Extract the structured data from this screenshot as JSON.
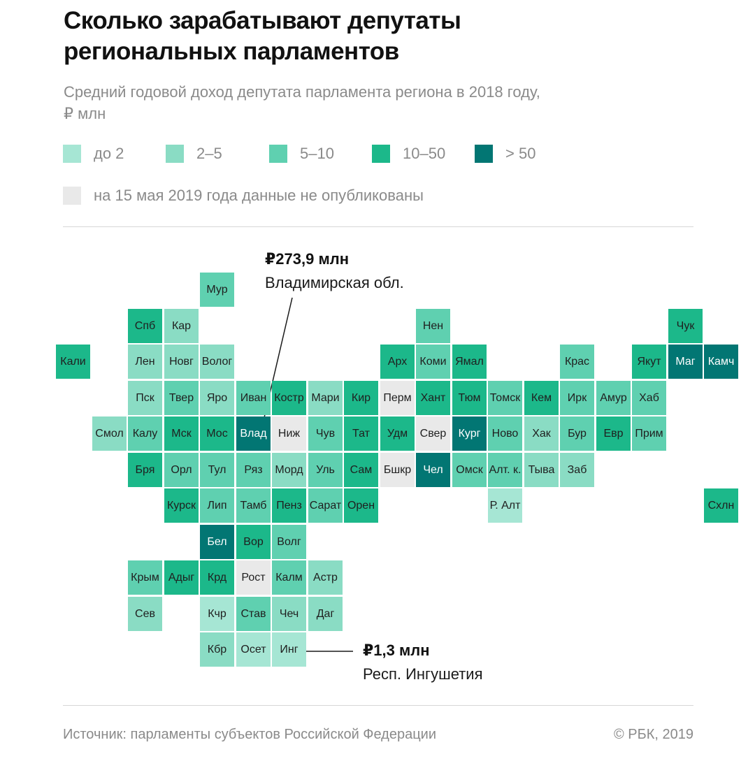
{
  "header": {
    "title_line1": "Сколько зарабатывают депутаты",
    "title_line2": "региональных парламентов",
    "subtitle_line1": "Средний годовой доход депутата парламента региона в 2018 году,",
    "subtitle_line2": "₽ млн"
  },
  "colors": {
    "c1": "#a6e6d4",
    "c2": "#8adcc4",
    "c3": "#5fd0b0",
    "c4": "#1cb88a",
    "c5": "#027673",
    "nodata": "#e9e9e9"
  },
  "legend": {
    "items": [
      {
        "label": "до 2",
        "class": "c1"
      },
      {
        "label": "2–5",
        "class": "c2"
      },
      {
        "label": "5–10",
        "class": "c3"
      },
      {
        "label": "10–50",
        "class": "c4"
      },
      {
        "label": "> 50",
        "class": "c5"
      }
    ],
    "nodata_label": "на 15 мая 2019 года данные не опубликованы"
  },
  "regions": [
    {
      "name": "Мур",
      "col": 4,
      "row": 0,
      "class": "c3"
    },
    {
      "name": "Спб",
      "col": 2,
      "row": 1,
      "class": "c4"
    },
    {
      "name": "Кар",
      "col": 3,
      "row": 1,
      "class": "c2"
    },
    {
      "name": "Нен",
      "col": 10,
      "row": 1,
      "class": "c3"
    },
    {
      "name": "Чук",
      "col": 17,
      "row": 1,
      "class": "c4"
    },
    {
      "name": "Кали",
      "col": 0,
      "row": 2,
      "class": "c4"
    },
    {
      "name": "Лен",
      "col": 2,
      "row": 2,
      "class": "c2"
    },
    {
      "name": "Новг",
      "col": 3,
      "row": 2,
      "class": "c2"
    },
    {
      "name": "Волог",
      "col": 4,
      "row": 2,
      "class": "c2"
    },
    {
      "name": "Арх",
      "col": 9,
      "row": 2,
      "class": "c4"
    },
    {
      "name": "Коми",
      "col": 10,
      "row": 2,
      "class": "c3"
    },
    {
      "name": "Ямал",
      "col": 11,
      "row": 2,
      "class": "c4"
    },
    {
      "name": "Крас",
      "col": 14,
      "row": 2,
      "class": "c3"
    },
    {
      "name": "Якут",
      "col": 16,
      "row": 2,
      "class": "c4"
    },
    {
      "name": "Маг",
      "col": 17,
      "row": 2,
      "class": "c5"
    },
    {
      "name": "Камч",
      "col": 18,
      "row": 2,
      "class": "c5"
    },
    {
      "name": "Пск",
      "col": 2,
      "row": 3,
      "class": "c2"
    },
    {
      "name": "Твер",
      "col": 3,
      "row": 3,
      "class": "c3"
    },
    {
      "name": "Яро",
      "col": 4,
      "row": 3,
      "class": "c2"
    },
    {
      "name": "Иван",
      "col": 5,
      "row": 3,
      "class": "c3"
    },
    {
      "name": "Костр",
      "col": 6,
      "row": 3,
      "class": "c4"
    },
    {
      "name": "Мари",
      "col": 7,
      "row": 3,
      "class": "c2"
    },
    {
      "name": "Кир",
      "col": 8,
      "row": 3,
      "class": "c4"
    },
    {
      "name": "Перм",
      "col": 9,
      "row": 3,
      "class": "nodata"
    },
    {
      "name": "Хант",
      "col": 10,
      "row": 3,
      "class": "c4"
    },
    {
      "name": "Тюм",
      "col": 11,
      "row": 3,
      "class": "c4"
    },
    {
      "name": "Томск",
      "col": 12,
      "row": 3,
      "class": "c3"
    },
    {
      "name": "Кем",
      "col": 13,
      "row": 3,
      "class": "c4"
    },
    {
      "name": "Ирк",
      "col": 14,
      "row": 3,
      "class": "c3"
    },
    {
      "name": "Амур",
      "col": 15,
      "row": 3,
      "class": "c3"
    },
    {
      "name": "Хаб",
      "col": 16,
      "row": 3,
      "class": "c3"
    },
    {
      "name": "Смол",
      "col": 1,
      "row": 4,
      "class": "c2"
    },
    {
      "name": "Калу",
      "col": 2,
      "row": 4,
      "class": "c3"
    },
    {
      "name": "Мск",
      "col": 3,
      "row": 4,
      "class": "c4"
    },
    {
      "name": "Мос",
      "col": 4,
      "row": 4,
      "class": "c4"
    },
    {
      "name": "Влад",
      "col": 5,
      "row": 4,
      "class": "c5"
    },
    {
      "name": "Ниж",
      "col": 6,
      "row": 4,
      "class": "nodata"
    },
    {
      "name": "Чув",
      "col": 7,
      "row": 4,
      "class": "c3"
    },
    {
      "name": "Тат",
      "col": 8,
      "row": 4,
      "class": "c4"
    },
    {
      "name": "Удм",
      "col": 9,
      "row": 4,
      "class": "c4"
    },
    {
      "name": "Свер",
      "col": 10,
      "row": 4,
      "class": "nodata"
    },
    {
      "name": "Кург",
      "col": 11,
      "row": 4,
      "class": "c5"
    },
    {
      "name": "Ново",
      "col": 12,
      "row": 4,
      "class": "c3"
    },
    {
      "name": "Хак",
      "col": 13,
      "row": 4,
      "class": "c2"
    },
    {
      "name": "Бур",
      "col": 14,
      "row": 4,
      "class": "c3"
    },
    {
      "name": "Евр",
      "col": 15,
      "row": 4,
      "class": "c4"
    },
    {
      "name": "Прим",
      "col": 16,
      "row": 4,
      "class": "c3"
    },
    {
      "name": "Бря",
      "col": 2,
      "row": 5,
      "class": "c4"
    },
    {
      "name": "Орл",
      "col": 3,
      "row": 5,
      "class": "c3"
    },
    {
      "name": "Тул",
      "col": 4,
      "row": 5,
      "class": "c3"
    },
    {
      "name": "Ряз",
      "col": 5,
      "row": 5,
      "class": "c3"
    },
    {
      "name": "Морд",
      "col": 6,
      "row": 5,
      "class": "c2"
    },
    {
      "name": "Уль",
      "col": 7,
      "row": 5,
      "class": "c3"
    },
    {
      "name": "Сам",
      "col": 8,
      "row": 5,
      "class": "c4"
    },
    {
      "name": "Бшкр",
      "col": 9,
      "row": 5,
      "class": "nodata"
    },
    {
      "name": "Чел",
      "col": 10,
      "row": 5,
      "class": "c5"
    },
    {
      "name": "Омск",
      "col": 11,
      "row": 5,
      "class": "c3"
    },
    {
      "name": "Алт. к.",
      "col": 12,
      "row": 5,
      "class": "c3"
    },
    {
      "name": "Тыва",
      "col": 13,
      "row": 5,
      "class": "c2"
    },
    {
      "name": "Заб",
      "col": 14,
      "row": 5,
      "class": "c2"
    },
    {
      "name": "Курск",
      "col": 3,
      "row": 6,
      "class": "c4"
    },
    {
      "name": "Лип",
      "col": 4,
      "row": 6,
      "class": "c3"
    },
    {
      "name": "Тамб",
      "col": 5,
      "row": 6,
      "class": "c3"
    },
    {
      "name": "Пенз",
      "col": 6,
      "row": 6,
      "class": "c4"
    },
    {
      "name": "Сарат",
      "col": 7,
      "row": 6,
      "class": "c3"
    },
    {
      "name": "Орен",
      "col": 8,
      "row": 6,
      "class": "c4"
    },
    {
      "name": "Р. Алт",
      "col": 12,
      "row": 6,
      "class": "c1"
    },
    {
      "name": "Схлн",
      "col": 18,
      "row": 6,
      "class": "c4"
    },
    {
      "name": "Бел",
      "col": 4,
      "row": 7,
      "class": "c5"
    },
    {
      "name": "Вор",
      "col": 5,
      "row": 7,
      "class": "c4"
    },
    {
      "name": "Волг",
      "col": 6,
      "row": 7,
      "class": "c3"
    },
    {
      "name": "Крым",
      "col": 2,
      "row": 8,
      "class": "c3"
    },
    {
      "name": "Адыг",
      "col": 3,
      "row": 8,
      "class": "c4"
    },
    {
      "name": "Крд",
      "col": 4,
      "row": 8,
      "class": "c4"
    },
    {
      "name": "Рост",
      "col": 5,
      "row": 8,
      "class": "nodata"
    },
    {
      "name": "Калм",
      "col": 6,
      "row": 8,
      "class": "c3"
    },
    {
      "name": "Астр",
      "col": 7,
      "row": 8,
      "class": "c2"
    },
    {
      "name": "Сев",
      "col": 2,
      "row": 9,
      "class": "c2"
    },
    {
      "name": "Кчр",
      "col": 4,
      "row": 9,
      "class": "c1"
    },
    {
      "name": "Став",
      "col": 5,
      "row": 9,
      "class": "c3"
    },
    {
      "name": "Чеч",
      "col": 6,
      "row": 9,
      "class": "c2"
    },
    {
      "name": "Даг",
      "col": 7,
      "row": 9,
      "class": "c2"
    },
    {
      "name": "Кбр",
      "col": 4,
      "row": 10,
      "class": "c2"
    },
    {
      "name": "Осет",
      "col": 5,
      "row": 10,
      "class": "c1"
    },
    {
      "name": "Инг",
      "col": 6,
      "row": 10,
      "class": "c1"
    }
  ],
  "callouts": {
    "top": {
      "value": "₽273,9 млн",
      "name": "Владимирская обл."
    },
    "bottom": {
      "value": "₽1,3 млн",
      "name": "Респ. Ингушетия"
    }
  },
  "footer": {
    "source": "Источник: парламенты субъектов Российской Федерации",
    "credit": "© РБК, 2019"
  }
}
